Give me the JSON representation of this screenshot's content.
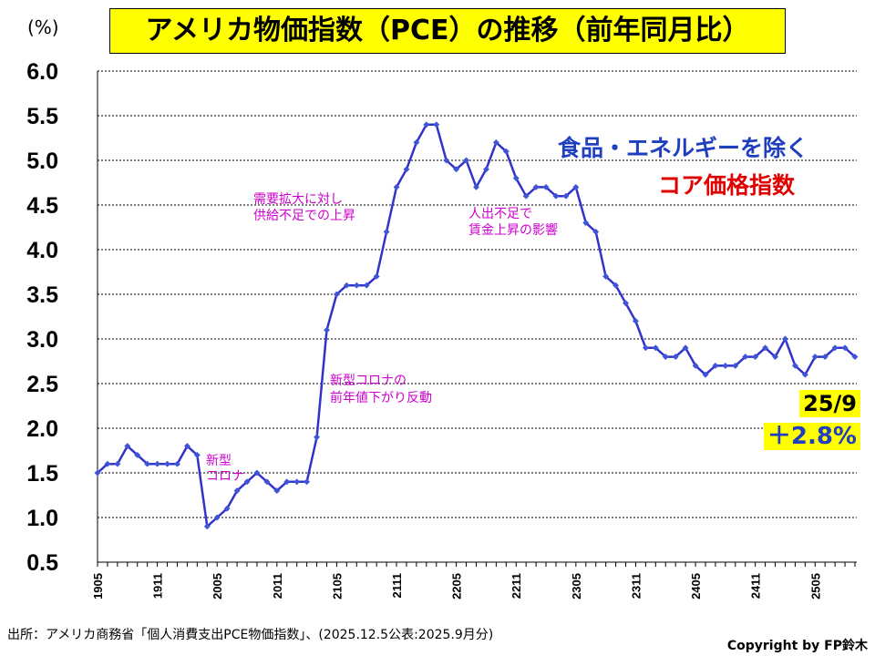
{
  "title": "アメリカ物価指数（PCE）の推移（前年同月比）",
  "unit_label": "(%)",
  "legend": {
    "line1": "食品・エネルギーを除く",
    "line2": "コア価格指数"
  },
  "callout": {
    "date": "25/9",
    "value": "＋2.8%"
  },
  "annotations": {
    "covid_line1": "新型",
    "covid_line2": "コロナ",
    "demand_line1": "需要拡大に対し",
    "demand_line2": "供給不足での上昇",
    "covid_rebound_line1": "新型コロナの",
    "covid_rebound_line2": "前年値下がり反動",
    "labor_line1": "人出不足で",
    "labor_line2": "賃金上昇の影響"
  },
  "source": "出所：アメリカ商務省「個人消費支出PCE物価指数」、(2025.12.5公表:2025.9月分)",
  "copyright": "Copyright by FP鈴木",
  "colors": {
    "line": "#3333cc",
    "marker": "#3d55d6",
    "annotation": "#cc00cc",
    "highlight": "#ffff00",
    "title_bg": "#ffff00"
  },
  "chart_data": {
    "type": "line",
    "title": "アメリカ物価指数（PCE）の推移（前年同月比）",
    "ylabel": "(%)",
    "xlabel": "",
    "ylim": [
      0.5,
      6.0
    ],
    "yticks": [
      "6.0",
      "5.5",
      "5.0",
      "4.5",
      "4.0",
      "3.5",
      "3.0",
      "2.5",
      "2.0",
      "1.5",
      "1.0",
      "0.5"
    ],
    "x_tick_labels": [
      "1905",
      "1911",
      "2005",
      "2011",
      "2105",
      "2111",
      "2205",
      "2211",
      "2305",
      "2311",
      "2405",
      "2411",
      "2505"
    ],
    "x_tick_every": 6,
    "series": [
      {
        "name": "食品・エネルギーを除くコア価格指数",
        "values": [
          1.5,
          1.6,
          1.6,
          1.8,
          1.7,
          1.6,
          1.6,
          1.6,
          1.6,
          1.8,
          1.7,
          0.9,
          1.0,
          1.1,
          1.3,
          1.4,
          1.5,
          1.4,
          1.3,
          1.4,
          1.4,
          1.4,
          1.9,
          3.1,
          3.5,
          3.6,
          3.6,
          3.6,
          3.7,
          4.2,
          4.7,
          4.9,
          5.2,
          5.4,
          5.4,
          5.0,
          4.9,
          5.0,
          4.7,
          4.9,
          5.2,
          5.1,
          4.8,
          4.6,
          4.7,
          4.7,
          4.6,
          4.6,
          4.7,
          4.3,
          4.2,
          3.7,
          3.6,
          3.4,
          3.2,
          2.9,
          2.9,
          2.8,
          2.8,
          2.9,
          2.7,
          2.6,
          2.7,
          2.7,
          2.7,
          2.8,
          2.8,
          2.9,
          2.8,
          3.0,
          2.7,
          2.6,
          2.8,
          2.8,
          2.9,
          2.9,
          2.8
        ]
      }
    ]
  }
}
